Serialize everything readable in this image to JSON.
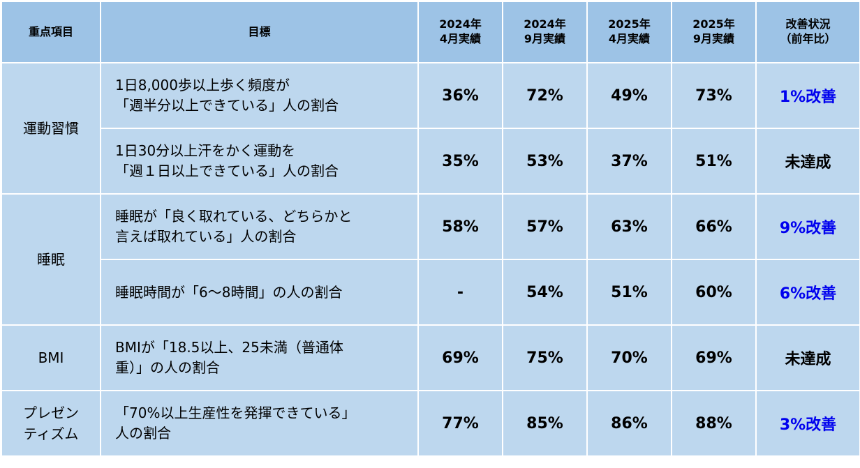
{
  "headers": {
    "category": "重点項目",
    "goal": "目標",
    "col1": [
      "2024年",
      "4月実績"
    ],
    "col2": [
      "2024年",
      "9月実績"
    ],
    "col3": [
      "2025年",
      "4月実績"
    ],
    "col4": [
      "2025年",
      "9月実績"
    ],
    "status": [
      "改善状況",
      "（前年比）"
    ]
  },
  "categories": {
    "exercise": [
      "運動習慣"
    ],
    "sleep": [
      "睡眠"
    ],
    "bmi": [
      "BMI"
    ],
    "presenteeism": [
      "プレゼン",
      "ティズム"
    ]
  },
  "rows": [
    {
      "goal": [
        "1日8,000歩以上歩く頻度が",
        "「週半分以上できている」人の割合"
      ],
      "values": [
        "36%",
        "72%",
        "49%",
        "73%"
      ],
      "status": "1%改善",
      "improved": true
    },
    {
      "goal": [
        "1日30分以上汗をかく運動を",
        "「週１日以上できている」人の割合"
      ],
      "values": [
        "35%",
        "53%",
        "37%",
        "51%"
      ],
      "status": "未達成",
      "improved": false
    },
    {
      "goal": [
        "睡眠が「良く取れている、どちらかと",
        "言えば取れている」人の割合"
      ],
      "values": [
        "58%",
        "57%",
        "63%",
        "66%"
      ],
      "status": "9%改善",
      "improved": true
    },
    {
      "goal": [
        "睡眠時間が「6～8時間」の人の割合"
      ],
      "values": [
        "-",
        "54%",
        "51%",
        "60%"
      ],
      "status": "6%改善",
      "improved": true
    },
    {
      "goal": [
        "BMIが「18.5以上、25未満（普通体",
        "重）」の人の割合"
      ],
      "values": [
        "69%",
        "75%",
        "70%",
        "69%"
      ],
      "status": "未達成",
      "improved": false
    },
    {
      "goal": [
        "「70%以上生産性を発揮できている」",
        "人の割合"
      ],
      "values": [
        "77%",
        "85%",
        "86%",
        "88%"
      ],
      "status": "3%改善",
      "improved": true
    }
  ],
  "colors": {
    "header_bg": "#9dc3e6",
    "body_bg": "#bdd7ee",
    "improved_text": "#0000ee"
  }
}
